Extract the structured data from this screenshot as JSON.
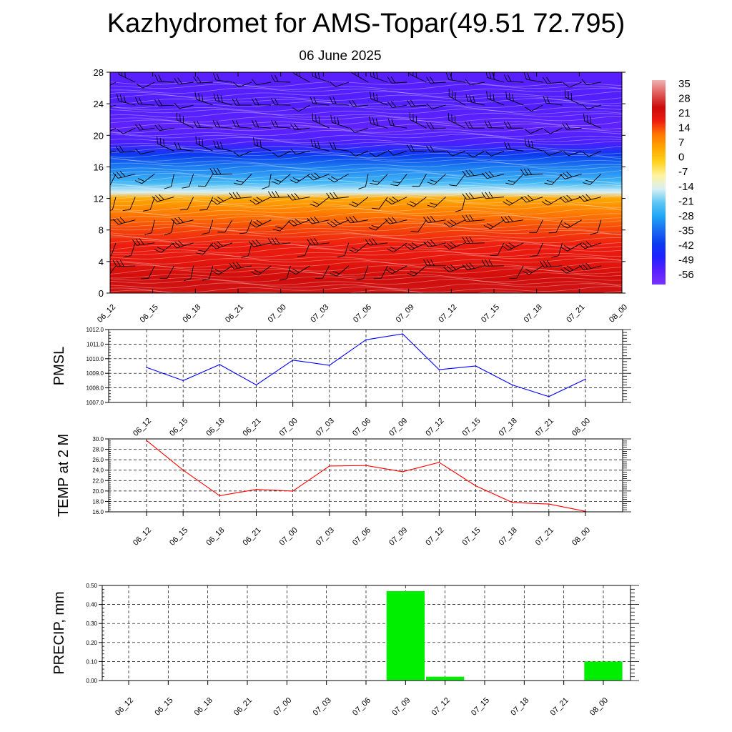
{
  "page": {
    "title": "Kazhydromet for AMS-Topar(49.51 72.795)",
    "date": "06 June 2025"
  },
  "chart_data": [
    {
      "type": "heatmap",
      "time_labels": [
        "06_12",
        "06_15",
        "06_18",
        "06_21",
        "07_00",
        "07_03",
        "07_06",
        "07_09",
        "07_12",
        "07_15",
        "07_18",
        "07_21",
        "08_00"
      ],
      "ylim": [
        0,
        28
      ],
      "yticks": [
        0,
        4,
        8,
        12,
        16,
        20,
        24,
        28
      ],
      "colorbar": {
        "labels": [
          "35",
          "28",
          "21",
          "14",
          "7",
          "0",
          "-7",
          "-14",
          "-21",
          "-28",
          "-35",
          "-42",
          "-49",
          "-56"
        ],
        "range": [
          -63,
          42
        ]
      },
      "temperature_profile": {
        "height": [
          0,
          2,
          4,
          6,
          8,
          10,
          12,
          12.8,
          14,
          16,
          17.5,
          19,
          21,
          24,
          28
        ],
        "temp": [
          29,
          27,
          23,
          21,
          18,
          14,
          7,
          -14,
          -24,
          -33,
          -42,
          -54,
          -57,
          -55,
          -56
        ]
      },
      "wind_barbs": true,
      "grid": false
    },
    {
      "type": "line",
      "ylabel": "PMSL",
      "x": [
        "06_12",
        "06_15",
        "06_18",
        "06_21",
        "07_00",
        "07_03",
        "07_06",
        "07_09",
        "07_12",
        "07_15",
        "07_18",
        "07_21",
        "08_00"
      ],
      "values": [
        1009.4,
        1008.5,
        1009.6,
        1008.2,
        1009.9,
        1009.55,
        1011.3,
        1011.7,
        1009.25,
        1009.5,
        1008.2,
        1007.4,
        1008.6
      ],
      "ylim": [
        1007.0,
        1012.0
      ],
      "yticks": [
        "1007.0",
        "1008.0",
        "1009.0",
        "1010.0",
        "1011.0",
        "1012.0"
      ],
      "color": "#0000ff",
      "grid": true
    },
    {
      "type": "line",
      "ylabel": "TEMP at 2 M",
      "x": [
        "06_12",
        "06_15",
        "06_18",
        "06_21",
        "07_00",
        "07_03",
        "07_06",
        "07_09",
        "07_12",
        "07_15",
        "07_18",
        "07_21",
        "08_00"
      ],
      "values": [
        29.7,
        24.0,
        19.1,
        20.3,
        20.0,
        24.8,
        24.9,
        23.7,
        25.5,
        21.0,
        17.8,
        17.5,
        16.1
      ],
      "ylim": [
        16.0,
        30.0
      ],
      "yticks": [
        "16.0",
        "18.0",
        "20.0",
        "22.0",
        "24.0",
        "26.0",
        "28.0",
        "30.0"
      ],
      "color": "#ff0000",
      "grid": true
    },
    {
      "type": "bar",
      "ylabel": "PRECIP, mm",
      "categories": [
        "06_12",
        "06_15",
        "06_18",
        "06_21",
        "07_00",
        "07_03",
        "07_06",
        "07_09",
        "07_12",
        "07_15",
        "07_18",
        "07_21",
        "08_00"
      ],
      "values": [
        0,
        0,
        0,
        0,
        0,
        0,
        0,
        0.47,
        0.02,
        0,
        0,
        0,
        0.1
      ],
      "ylim": [
        0,
        0.5
      ],
      "yticks": [
        "0.00",
        "0.10",
        "0.20",
        "0.30",
        "0.40",
        "0.50"
      ],
      "color": "#00ee00",
      "grid": true
    }
  ]
}
